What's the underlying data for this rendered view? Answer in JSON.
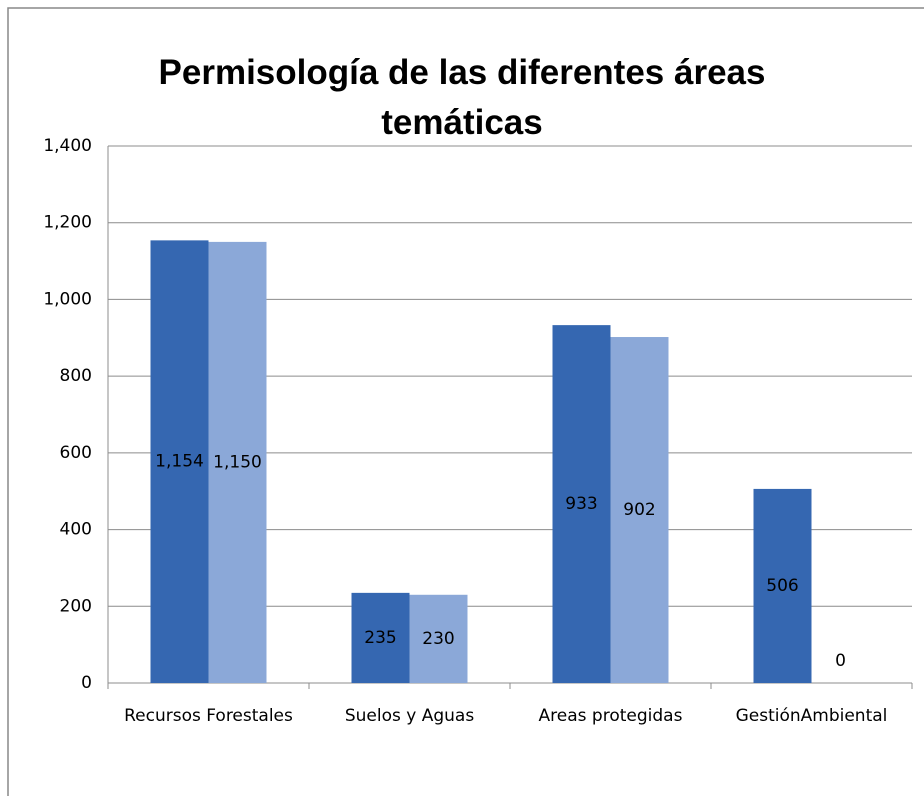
{
  "chart_data": {
    "type": "bar",
    "title": "Permisología de las diferentes áreas temáticas",
    "categories": [
      "Recursos Forestales",
      "Suelos y Aguas",
      "Areas protegidas",
      "GestiónAmbiental"
    ],
    "series": [
      {
        "color": "#3567b1",
        "values": [
          1154,
          235,
          933,
          506
        ],
        "value_labels": [
          "1,154",
          "235",
          "933",
          "506"
        ]
      },
      {
        "color": "#8ba8d8",
        "values": [
          1150,
          230,
          902,
          0
        ],
        "value_labels": [
          "1,150",
          "230",
          "902",
          "0"
        ]
      }
    ],
    "ylim": [
      0,
      1400
    ],
    "yticks": [
      0,
      200,
      400,
      600,
      800,
      {
        "value": 1000,
        "label": "1,000"
      },
      {
        "value": 1200,
        "label": "1,200"
      },
      {
        "value": 1400,
        "label": "1,400"
      }
    ],
    "grid": true
  }
}
